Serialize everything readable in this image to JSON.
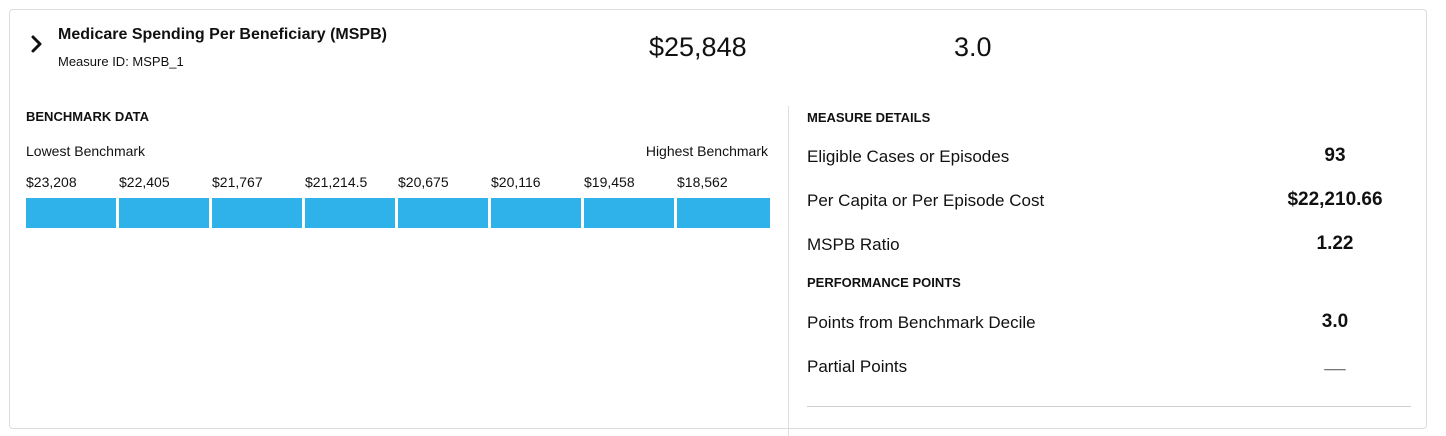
{
  "header": {
    "title": "Medicare Spending Per Beneficiary (MSPB)",
    "measure_id": "Measure ID: MSPB_1",
    "score": "$25,848",
    "points": "3.0",
    "expand_icon": "chevron-right-icon"
  },
  "benchmark": {
    "heading": "BENCHMARK DATA",
    "lowest_label": "Lowest Benchmark",
    "highest_label": "Highest Benchmark",
    "bar_color": "#2fb1ea",
    "values": [
      "$23,208",
      "$22,405",
      "$21,767",
      "$21,214.5",
      "$20,675",
      "$20,116",
      "$19,458",
      "$18,562"
    ]
  },
  "details": {
    "heading": "MEASURE DETAILS",
    "rows": [
      {
        "label": "Eligible Cases or Episodes",
        "value": "93"
      },
      {
        "label": "Per Capita or Per Episode Cost",
        "value": "$22,210.66"
      },
      {
        "label": "MSPB Ratio",
        "value": "1.22"
      }
    ]
  },
  "performance": {
    "heading": "PERFORMANCE POINTS",
    "rows": [
      {
        "label": "Points from Benchmark Decile",
        "value": "3.0"
      },
      {
        "label": "Partial Points",
        "value": "__"
      }
    ]
  }
}
